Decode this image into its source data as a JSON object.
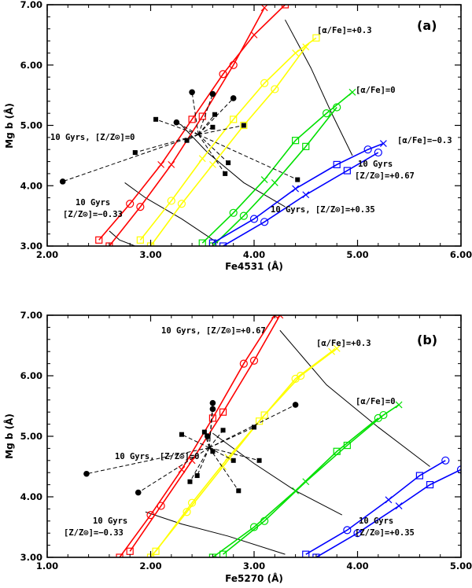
{
  "chart_data": [
    {
      "type": "line",
      "panel_label": "(a)",
      "xlabel": "Fe4531 (Å)",
      "ylabel": "Mg b (Å)",
      "xlim": [
        2.0,
        6.0
      ],
      "ylim": [
        3.0,
        7.0
      ],
      "xticks": [
        "2.00",
        "3.00",
        "4.00",
        "5.00",
        "6.00"
      ],
      "yticks": [
        "3.00",
        "4.00",
        "5.00",
        "6.00",
        "7.00"
      ],
      "model_series": [
        {
          "name": "[α/Fe]=+0.3",
          "color": "#ff0000",
          "x": [
            2.5,
            2.8,
            3.1,
            3.4,
            3.7,
            4.0,
            4.3
          ],
          "y": [
            3.1,
            3.7,
            4.35,
            5.1,
            5.85,
            6.5,
            7.0
          ]
        },
        {
          "name": "[α/Fe]=+0.3",
          "color": "#ff0000",
          "x": [
            2.6,
            2.9,
            3.2,
            3.5,
            3.8,
            4.1
          ],
          "y": [
            3.0,
            3.65,
            4.35,
            5.15,
            6.0,
            6.95
          ]
        },
        {
          "name": "[α/Fe]=+0.3",
          "color": "#ffff00",
          "x": [
            2.9,
            3.2,
            3.5,
            3.8,
            4.1,
            4.4,
            4.6
          ],
          "y": [
            3.1,
            3.75,
            4.45,
            5.1,
            5.7,
            6.2,
            6.45
          ]
        },
        {
          "name": "[α/Fe]=+0.3",
          "color": "#ffff00",
          "x": [
            3.0,
            3.3,
            3.6,
            3.9,
            4.2,
            4.5
          ],
          "y": [
            3.0,
            3.7,
            4.35,
            5.0,
            5.6,
            6.3
          ]
        },
        {
          "name": "[α/Fe]=0",
          "color": "#00e000",
          "x": [
            3.5,
            3.8,
            4.1,
            4.4,
            4.7,
            4.95
          ],
          "y": [
            3.05,
            3.55,
            4.1,
            4.75,
            5.2,
            5.55
          ]
        },
        {
          "name": "[α/Fe]=0",
          "color": "#00e000",
          "x": [
            3.6,
            3.9,
            4.2,
            4.5,
            4.8
          ],
          "y": [
            3.0,
            3.5,
            4.05,
            4.65,
            5.3
          ]
        },
        {
          "name": "[α/Fe]=-0.3",
          "color": "#0000ff",
          "x": [
            3.6,
            4.0,
            4.4,
            4.8,
            5.1,
            5.25
          ],
          "y": [
            3.05,
            3.45,
            3.95,
            4.35,
            4.6,
            4.7
          ]
        },
        {
          "name": "[α/Fe]=-0.3",
          "color": "#0000ff",
          "x": [
            3.7,
            4.1,
            4.5,
            4.9,
            5.2
          ],
          "y": [
            3.0,
            3.4,
            3.85,
            4.25,
            4.55
          ]
        }
      ],
      "grid_lines": [
        {
          "x": [
            4.3,
            4.55,
            4.75,
            4.95
          ],
          "y": [
            6.75,
            5.95,
            5.2,
            4.5
          ]
        },
        {
          "x": [
            3.3,
            3.55,
            3.9,
            4.3
          ],
          "y": [
            5.0,
            4.55,
            4.05,
            3.65
          ]
        },
        {
          "x": [
            2.75,
            2.95,
            3.3,
            3.65
          ],
          "y": [
            4.05,
            3.8,
            3.45,
            3.05
          ]
        },
        {
          "x": [
            2.6,
            2.7,
            2.85
          ],
          "y": [
            3.25,
            3.1,
            3.0
          ]
        }
      ],
      "galaxies": [
        {
          "marker": "circle",
          "points": [
            {
              "x": 2.15,
              "y": 4.07
            },
            {
              "x": 3.25,
              "y": 5.05
            },
            {
              "x": 3.4,
              "y": 5.55
            },
            {
              "x": 3.6,
              "y": 5.52
            },
            {
              "x": 3.8,
              "y": 5.45
            }
          ]
        },
        {
          "marker": "square",
          "points": [
            {
              "x": 2.85,
              "y": 4.55
            },
            {
              "x": 3.05,
              "y": 5.1
            },
            {
              "x": 3.35,
              "y": 4.75
            },
            {
              "x": 3.6,
              "y": 4.97
            },
            {
              "x": 3.62,
              "y": 5.18
            },
            {
              "x": 3.72,
              "y": 4.2
            },
            {
              "x": 3.75,
              "y": 4.38
            },
            {
              "x": 3.9,
              "y": 5.0
            },
            {
              "x": 4.42,
              "y": 4.1
            }
          ]
        }
      ],
      "annotations": [
        "[α/Fe]=+0.3",
        "[α/Fe]=0",
        "[α/Fe]=−0.3",
        "10 Gyrs, [Z/Z⊙]=0",
        "10 Gyrs",
        "[Z/Z⊙]=+0.67",
        "10 Gyrs",
        "[Z/Z⊙]=−0.33",
        "10 Gyrs, [Z/Z⊙]=+0.35"
      ]
    },
    {
      "type": "line",
      "panel_label": "(b)",
      "xlabel": "Fe5270 (Å)",
      "ylabel": "Mg b (Å)",
      "xlim": [
        1.0,
        5.0
      ],
      "ylim": [
        3.0,
        7.0
      ],
      "xticks": [
        "1.00",
        "2.00",
        "3.00",
        "4.00",
        "5.00"
      ],
      "yticks": [
        "3.00",
        "4.00",
        "5.00",
        "6.00",
        "7.00"
      ],
      "model_series": [
        {
          "name": "[α/Fe]=+0.3",
          "color": "#ff0000",
          "x": [
            1.8,
            2.1,
            2.4,
            2.7,
            3.0,
            3.25
          ],
          "y": [
            3.1,
            3.85,
            4.6,
            5.4,
            6.25,
            7.0
          ]
        },
        {
          "name": "[α/Fe]=+0.3",
          "color": "#ff0000",
          "x": [
            1.7,
            2.0,
            2.3,
            2.6,
            2.9,
            3.2
          ],
          "y": [
            3.0,
            3.7,
            4.45,
            5.3,
            6.2,
            7.0
          ]
        },
        {
          "name": "[α/Fe]=+0.3",
          "color": "#ffff00",
          "x": [
            2.05,
            2.4,
            2.75,
            3.1,
            3.45,
            3.8
          ],
          "y": [
            3.1,
            3.9,
            4.65,
            5.35,
            6.0,
            6.45
          ]
        },
        {
          "name": "[α/Fe]=+0.3",
          "color": "#ffff00",
          "x": [
            2.0,
            2.35,
            2.7,
            3.05,
            3.4,
            3.75
          ],
          "y": [
            3.0,
            3.75,
            4.5,
            5.25,
            5.95,
            6.4
          ]
        },
        {
          "name": "[α/Fe]=0",
          "color": "#00e000",
          "x": [
            2.7,
            3.1,
            3.5,
            3.9,
            4.25,
            4.4
          ],
          "y": [
            3.05,
            3.6,
            4.25,
            4.85,
            5.35,
            5.52
          ]
        },
        {
          "name": "[α/Fe]=0",
          "color": "#00e000",
          "x": [
            2.6,
            3.0,
            3.4,
            3.8,
            4.2
          ],
          "y": [
            3.0,
            3.5,
            4.1,
            4.75,
            5.3
          ]
        },
        {
          "name": "[α/Fe]=-0.3",
          "color": "#0000ff",
          "x": [
            3.5,
            3.9,
            4.3,
            4.6,
            4.85
          ],
          "y": [
            3.05,
            3.45,
            3.95,
            4.35,
            4.6
          ]
        },
        {
          "name": "[α/Fe]=-0.3",
          "color": "#0000ff",
          "x": [
            3.6,
            4.0,
            4.4,
            4.7,
            5.0
          ],
          "y": [
            3.0,
            3.4,
            3.85,
            4.2,
            4.45
          ]
        }
      ],
      "grid_lines": [
        {
          "x": [
            3.25,
            3.7,
            4.2,
            4.7
          ],
          "y": [
            6.75,
            5.85,
            5.15,
            4.5
          ]
        },
        {
          "x": [
            2.6,
            3.0,
            3.4,
            3.85
          ],
          "y": [
            5.05,
            4.55,
            4.1,
            3.7
          ]
        },
        {
          "x": [
            1.95,
            2.3,
            2.75,
            3.3
          ],
          "y": [
            3.75,
            3.55,
            3.35,
            3.05
          ]
        }
      ],
      "galaxies": [
        {
          "marker": "circle",
          "points": [
            {
              "x": 1.38,
              "y": 4.38
            },
            {
              "x": 1.88,
              "y": 4.07
            },
            {
              "x": 2.55,
              "y": 5.0
            },
            {
              "x": 2.6,
              "y": 5.55
            },
            {
              "x": 2.6,
              "y": 5.45
            },
            {
              "x": 3.4,
              "y": 5.52
            }
          ]
        },
        {
          "marker": "square",
          "points": [
            {
              "x": 2.3,
              "y": 5.03
            },
            {
              "x": 2.38,
              "y": 4.25
            },
            {
              "x": 2.45,
              "y": 4.35
            },
            {
              "x": 2.52,
              "y": 5.07
            },
            {
              "x": 2.6,
              "y": 4.75
            },
            {
              "x": 2.7,
              "y": 5.1
            },
            {
              "x": 2.8,
              "y": 4.6
            },
            {
              "x": 2.85,
              "y": 4.1
            },
            {
              "x": 3.0,
              "y": 5.15
            },
            {
              "x": 3.05,
              "y": 4.6
            }
          ]
        }
      ],
      "annotations": [
        "10 Gyrs, [Z/Z⊙]=+0.67",
        "[α/Fe]=+0.3",
        "[α/Fe]=0",
        "10 Gyrs, [Z/Z⊙]=0",
        "10 Gyrs",
        "[Z/Z⊙]=−0.33",
        "10 Gyrs",
        "[Z/Z⊙]=+0.35"
      ]
    }
  ]
}
